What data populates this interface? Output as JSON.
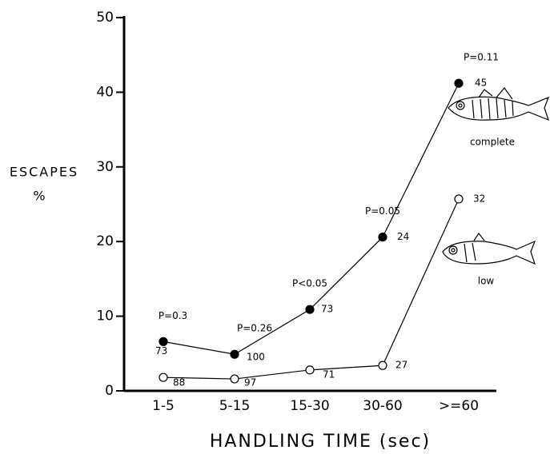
{
  "chart_data": {
    "type": "line",
    "ylabel": [
      "ESCAPES",
      "%"
    ],
    "xlabel": "HANDLING TIME (sec)",
    "categories": [
      "1-5",
      "5-15",
      "15-30",
      "30-60",
      ">=60"
    ],
    "series": [
      {
        "name": "complete",
        "color": "#000000",
        "marker": "filled",
        "values": [
          6.6,
          4.9,
          10.9,
          20.6,
          41.2
        ],
        "value_labels": null,
        "n_labels": [
          "73",
          "100",
          "73",
          "24",
          "45"
        ]
      },
      {
        "name": "low",
        "color": "#000000",
        "marker": "open",
        "values": [
          1.8,
          1.6,
          2.8,
          3.4,
          25.7
        ],
        "n_labels": [
          "88",
          "97",
          "71",
          "27",
          "32"
        ]
      }
    ],
    "p_labels": [
      "P=0.3",
      "P=0.26",
      "P<0.05",
      "P=0.05",
      "P=0.11"
    ],
    "ylim": [
      0,
      50
    ],
    "yticks": [
      0,
      10,
      20,
      30,
      40,
      50
    ]
  }
}
